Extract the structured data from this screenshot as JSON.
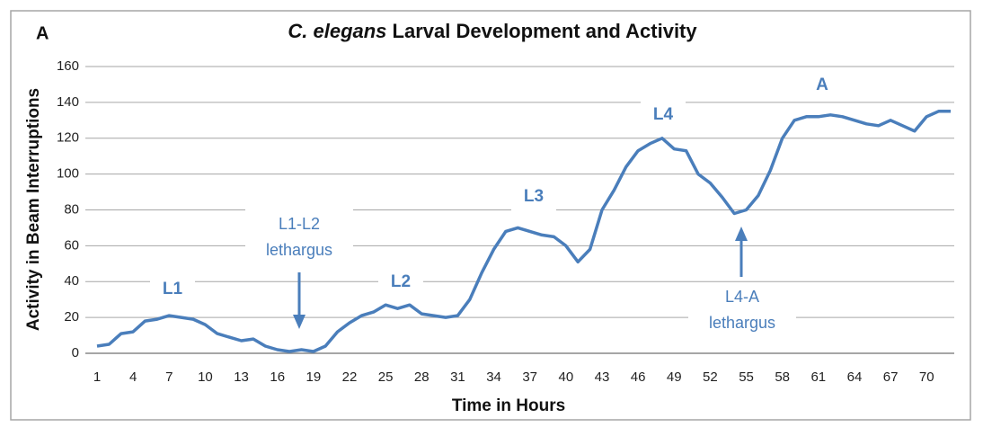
{
  "chart_data": {
    "type": "line",
    "panel": "A",
    "title": {
      "italic": "C. elegans",
      "rest": "Larval Development and Activity"
    },
    "x_label": "Time in Hours",
    "y_label": "Activity in Beam Interruptions",
    "categories": [
      "1",
      null,
      null,
      "4",
      null,
      null,
      "7",
      null,
      null,
      "10",
      null,
      null,
      "13",
      null,
      null,
      "16",
      null,
      null,
      "19",
      null,
      null,
      "22",
      null,
      null,
      "25",
      null,
      null,
      "28",
      null,
      null,
      "31",
      null,
      null,
      "34",
      null,
      null,
      "37",
      null,
      null,
      "40",
      null,
      null,
      "43",
      null,
      null,
      "46",
      null,
      null,
      "49",
      null,
      null,
      "52",
      null,
      null,
      "55",
      null,
      null,
      "58",
      null,
      null,
      "61",
      null,
      null,
      "64",
      null,
      null,
      "67",
      null,
      null,
      "70",
      null,
      null
    ],
    "values": [
      4,
      5,
      11,
      12,
      18,
      19,
      21,
      20,
      19,
      16,
      11,
      9,
      7,
      8,
      4,
      2,
      1,
      2,
      1,
      4,
      12,
      17,
      21,
      23,
      27,
      25,
      27,
      22,
      21,
      20,
      21,
      30,
      45,
      58,
      68,
      70,
      68,
      66,
      65,
      60,
      51,
      58,
      80,
      91,
      104,
      113,
      117,
      120,
      114,
      113,
      100,
      95,
      87,
      78,
      80,
      88,
      102,
      120,
      130,
      132,
      132,
      133,
      132,
      130,
      128,
      127,
      130,
      127,
      124,
      132,
      135,
      135
    ],
    "color": "#4a7ebb",
    "ylim": [
      0,
      160
    ],
    "yticks": [
      0,
      20,
      40,
      60,
      80,
      100,
      120,
      140,
      160
    ],
    "grid": true,
    "annotations": [
      [
        "L1"
      ],
      [
        "L1-L2",
        "lethargus"
      ],
      [
        "L2"
      ],
      [
        "L3"
      ],
      [
        "L4"
      ],
      [
        "L4-A",
        "lethargus"
      ],
      [
        "A"
      ]
    ]
  }
}
